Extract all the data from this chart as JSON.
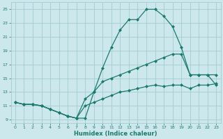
{
  "xlabel": "Humidex (Indice chaleur)",
  "background_color": "#cde8ec",
  "grid_color": "#a8d0d4",
  "line_color": "#1a7a6e",
  "xlim": [
    -0.5,
    23.5
  ],
  "ylim": [
    8.5,
    26.0
  ],
  "xticks": [
    0,
    1,
    2,
    3,
    4,
    5,
    6,
    7,
    8,
    9,
    10,
    11,
    12,
    13,
    14,
    15,
    16,
    17,
    18,
    19,
    20,
    21,
    22,
    23
  ],
  "yticks": [
    9,
    11,
    13,
    15,
    17,
    19,
    21,
    23,
    25
  ],
  "line1_x": [
    0,
    1,
    2,
    3,
    4,
    5,
    6,
    7,
    8,
    9,
    10,
    11,
    12,
    13,
    14,
    15,
    16,
    17,
    18,
    19,
    20,
    21,
    22,
    23
  ],
  "line1_y": [
    11.5,
    11.2,
    11.2,
    11.0,
    10.5,
    10.0,
    9.5,
    9.2,
    9.2,
    13.0,
    16.5,
    19.5,
    22.0,
    23.5,
    23.5,
    25.0,
    25.0,
    24.0,
    22.5,
    19.5,
    15.5,
    15.5,
    15.5,
    14.0
  ],
  "line2_x": [
    0,
    1,
    2,
    3,
    4,
    5,
    6,
    7,
    8,
    9,
    10,
    11,
    12,
    13,
    14,
    15,
    16,
    17,
    18,
    19,
    20,
    21,
    22,
    23
  ],
  "line2_y": [
    11.5,
    11.2,
    11.2,
    11.0,
    10.5,
    10.0,
    9.5,
    9.2,
    12.0,
    13.0,
    14.5,
    15.0,
    15.5,
    16.0,
    16.5,
    17.0,
    17.5,
    18.0,
    18.5,
    18.5,
    15.5,
    15.5,
    15.5,
    15.5
  ],
  "line3_x": [
    0,
    1,
    2,
    3,
    4,
    5,
    6,
    7,
    8,
    9,
    10,
    11,
    12,
    13,
    14,
    15,
    16,
    17,
    18,
    19,
    20,
    21,
    22,
    23
  ],
  "line3_y": [
    11.5,
    11.2,
    11.2,
    11.0,
    10.5,
    10.0,
    9.5,
    9.2,
    11.0,
    11.5,
    12.0,
    12.5,
    13.0,
    13.2,
    13.5,
    13.8,
    14.0,
    13.8,
    14.0,
    14.0,
    13.5,
    14.0,
    14.0,
    14.2
  ]
}
